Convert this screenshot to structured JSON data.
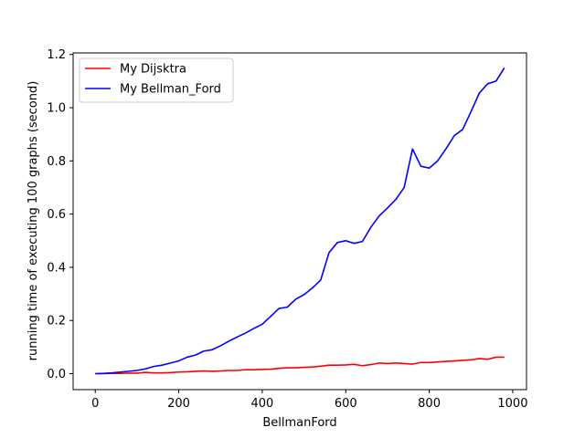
{
  "chart_data": {
    "type": "line",
    "title": "",
    "xlabel": "BellmanFord",
    "ylabel": "running time of executing 100 graphs (second)",
    "xlim": [
      -53,
      1033
    ],
    "ylim": [
      -0.06,
      1.206
    ],
    "xticks": [
      0,
      200,
      400,
      600,
      800,
      1000
    ],
    "xtick_labels": [
      "0",
      "200",
      "400",
      "600",
      "800",
      "1000"
    ],
    "yticks": [
      0.0,
      0.2,
      0.4,
      0.6,
      0.8,
      1.0,
      1.2
    ],
    "ytick_labels": [
      "0.0",
      "0.2",
      "0.4",
      "0.6",
      "0.8",
      "1.0",
      "1.2"
    ],
    "grid": false,
    "legend_position": "top-left",
    "series": [
      {
        "name": "My Dijsktra",
        "color": "#ff0000",
        "x": [
          0,
          20,
          40,
          60,
          80,
          100,
          120,
          140,
          160,
          180,
          200,
          220,
          240,
          260,
          280,
          300,
          320,
          340,
          360,
          380,
          400,
          420,
          440,
          460,
          480,
          500,
          520,
          540,
          560,
          580,
          600,
          620,
          640,
          660,
          680,
          700,
          720,
          740,
          760,
          780,
          800,
          820,
          840,
          860,
          880,
          900,
          920,
          940,
          960,
          980
        ],
        "values": [
          0.0,
          0.0,
          0.001,
          0.001,
          0.002,
          0.002,
          0.005,
          0.003,
          0.003,
          0.004,
          0.006,
          0.007,
          0.009,
          0.01,
          0.009,
          0.01,
          0.012,
          0.012,
          0.015,
          0.015,
          0.016,
          0.017,
          0.02,
          0.022,
          0.022,
          0.024,
          0.025,
          0.028,
          0.032,
          0.032,
          0.033,
          0.035,
          0.03,
          0.034,
          0.04,
          0.038,
          0.04,
          0.038,
          0.036,
          0.042,
          0.042,
          0.044,
          0.046,
          0.048,
          0.05,
          0.052,
          0.057,
          0.054,
          0.062,
          0.062
        ]
      },
      {
        "name": "My Bellman_Ford",
        "color": "#0000ff",
        "x": [
          0,
          20,
          40,
          60,
          80,
          100,
          120,
          140,
          160,
          180,
          200,
          220,
          240,
          260,
          280,
          300,
          320,
          340,
          360,
          380,
          400,
          420,
          440,
          460,
          480,
          500,
          520,
          540,
          560,
          580,
          600,
          620,
          640,
          660,
          680,
          700,
          720,
          740,
          760,
          780,
          800,
          820,
          840,
          860,
          880,
          900,
          920,
          940,
          960,
          980
        ],
        "values": [
          0.0,
          0.001,
          0.003,
          0.006,
          0.009,
          0.012,
          0.018,
          0.027,
          0.032,
          0.04,
          0.048,
          0.062,
          0.07,
          0.085,
          0.09,
          0.105,
          0.122,
          0.138,
          0.153,
          0.17,
          0.186,
          0.215,
          0.245,
          0.25,
          0.28,
          0.297,
          0.322,
          0.352,
          0.455,
          0.493,
          0.5,
          0.49,
          0.497,
          0.55,
          0.593,
          0.623,
          0.655,
          0.7,
          0.845,
          0.78,
          0.773,
          0.8,
          0.845,
          0.895,
          0.918,
          0.985,
          1.055,
          1.09,
          1.1,
          1.15
        ]
      }
    ]
  }
}
